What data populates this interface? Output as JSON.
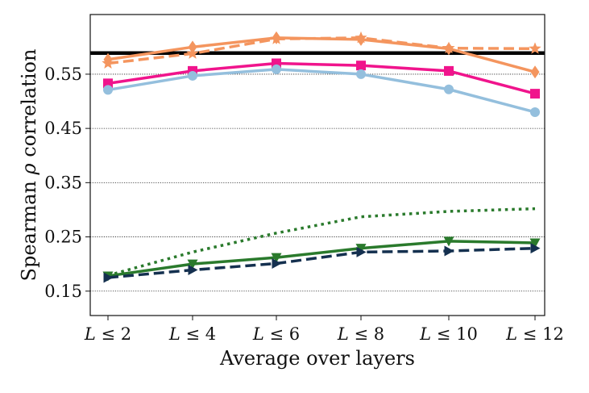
{
  "chart_data": {
    "type": "line",
    "xlabel": "Average over layers",
    "ylabel_parts": [
      "Spearman ",
      "ρ",
      " correlation"
    ],
    "categories": [
      {
        "var": "L",
        "op": " ≤ ",
        "num": "2"
      },
      {
        "var": "L",
        "op": " ≤ ",
        "num": "4"
      },
      {
        "var": "L",
        "op": " ≤ ",
        "num": "6"
      },
      {
        "var": "L",
        "op": " ≤ ",
        "num": "8"
      },
      {
        "var": "L",
        "op": " ≤ ",
        "num": "10"
      },
      {
        "var": "L",
        "op": " ≤ ",
        "num": "12"
      }
    ],
    "yticks": [
      "0.15",
      "0.25",
      "0.35",
      "0.45",
      "0.55"
    ],
    "ylim": [
      0.105,
      0.66
    ],
    "grid": "horizontal dotted",
    "reference_line": {
      "value": 0.589,
      "color": "#000000"
    },
    "series": [
      {
        "name": "orange-solid-diamond",
        "color": "#f4955e",
        "dash": "solid",
        "marker": "diamond",
        "values": [
          0.577,
          0.6,
          0.617,
          0.614,
          0.597,
          0.554
        ]
      },
      {
        "name": "orange-dashed-star",
        "color": "#f4955e",
        "dash": "dashed",
        "marker": "star",
        "values": [
          0.57,
          0.588,
          0.615,
          0.617,
          0.598,
          0.597
        ]
      },
      {
        "name": "pink-solid-square",
        "color": "#f0148c",
        "dash": "solid",
        "marker": "square",
        "values": [
          0.533,
          0.556,
          0.57,
          0.566,
          0.556,
          0.514
        ]
      },
      {
        "name": "lightblue-solid-circle",
        "color": "#94bfdd",
        "dash": "solid",
        "marker": "circle",
        "values": [
          0.521,
          0.547,
          0.559,
          0.55,
          0.522,
          0.48
        ]
      },
      {
        "name": "green-dotted",
        "color": "#2a7a2c",
        "dash": "dotted",
        "marker": "none",
        "values": [
          0.179,
          0.222,
          0.257,
          0.287,
          0.297,
          0.302
        ]
      },
      {
        "name": "green-solid-triangle-down",
        "color": "#2a7a2c",
        "dash": "solid",
        "marker": "triangle-down",
        "values": [
          0.178,
          0.2,
          0.212,
          0.229,
          0.242,
          0.239
        ]
      },
      {
        "name": "navy-dashed-triangle-right",
        "color": "#14304f",
        "dash": "dashed",
        "marker": "triangle-right",
        "values": [
          0.175,
          0.189,
          0.201,
          0.222,
          0.224,
          0.229
        ]
      }
    ]
  }
}
